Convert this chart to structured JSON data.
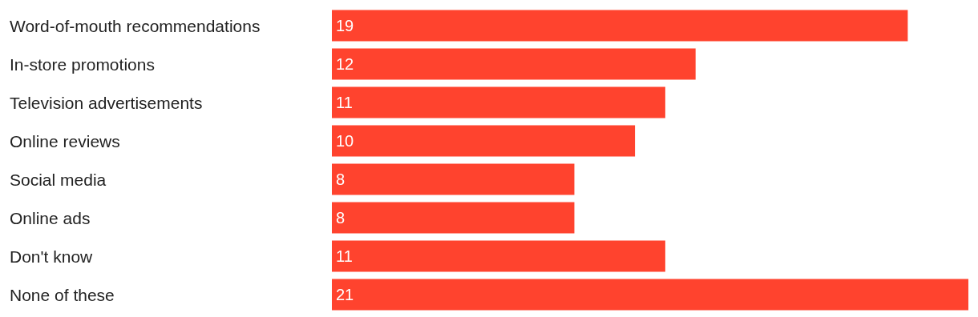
{
  "chart_data": {
    "type": "bar",
    "orientation": "horizontal",
    "categories": [
      "Word-of-mouth recommendations",
      "In-store promotions",
      "Television advertisements",
      "Online reviews",
      "Social media",
      "Online ads",
      "Don't know",
      "None of these"
    ],
    "values": [
      19,
      12,
      11,
      10,
      8,
      8,
      11,
      21
    ],
    "color": "#ff432e",
    "data_labels": true
  }
}
